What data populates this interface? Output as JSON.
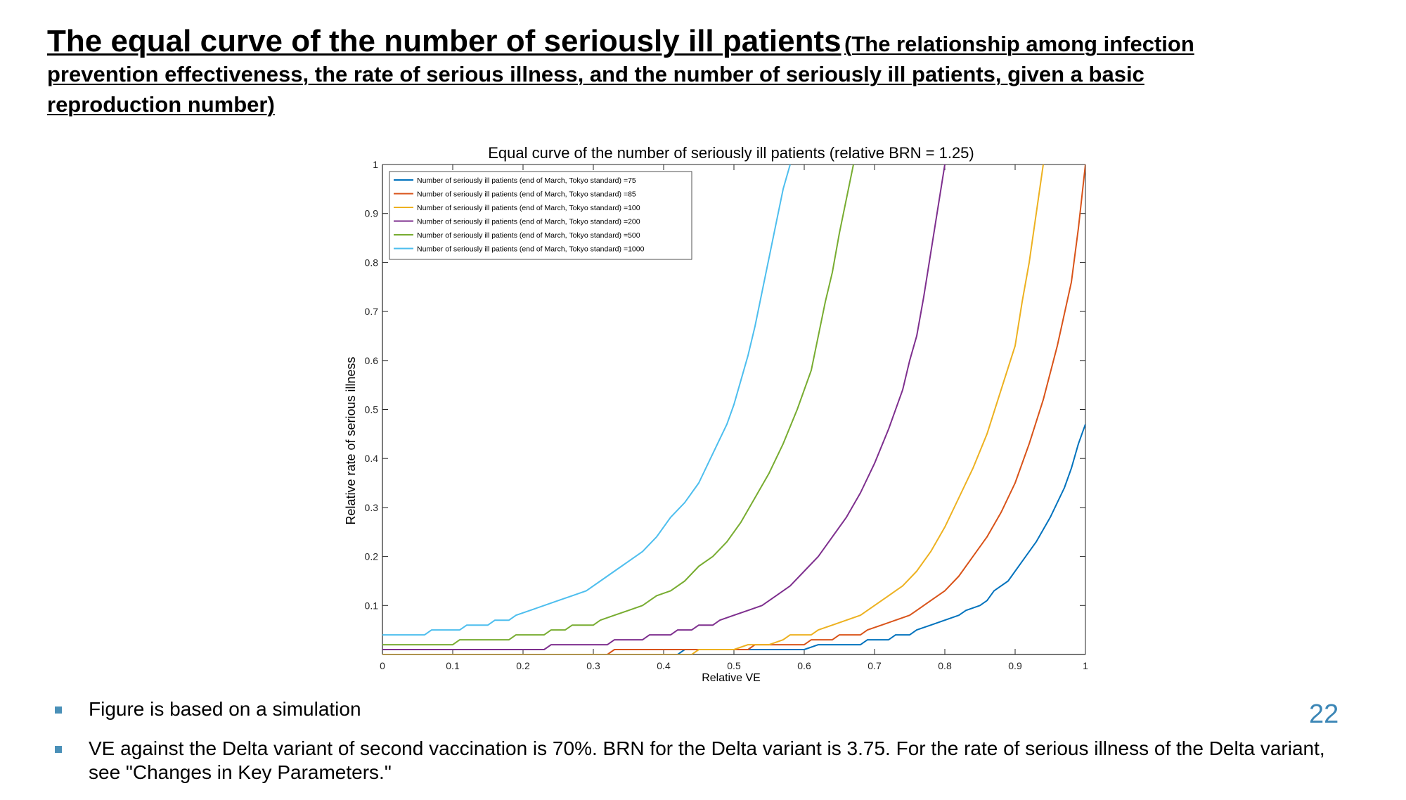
{
  "slide": {
    "title_main": "The equal curve of the number of seriously ill patients",
    "title_sub": "(The relationship among infection prevention effectiveness, the rate of serious illness, and the number of seriously ill patients, given a basic reproduction number)",
    "bullets": [
      "Figure is based on a simulation",
      "VE against the Delta variant of second vaccination is 70%. BRN for the Delta variant is 3.75. For the rate of serious illness of the Delta variant, see \"Changes in Key Parameters.\""
    ],
    "page_number": "22",
    "bullet_color": "#4a90b8",
    "page_number_color": "#3b86b6"
  },
  "chart_data": {
    "type": "line",
    "title": "Equal curve of the number of seriously ill patients (relative BRN = 1.25)",
    "xlabel": "Relative VE",
    "ylabel": "Relative rate of serious illness",
    "xlim": [
      0,
      1
    ],
    "ylim": [
      0,
      1
    ],
    "xticks": [
      "0",
      "0.1",
      "0.2",
      "0.3",
      "0.4",
      "0.5",
      "0.6",
      "0.7",
      "0.8",
      "0.9",
      "1"
    ],
    "yticks": [
      "0.1",
      "0.2",
      "0.3",
      "0.4",
      "0.5",
      "0.6",
      "0.7",
      "0.8",
      "0.9",
      "1"
    ],
    "grid": false,
    "legend_position": "top-left",
    "series": [
      {
        "name": "Number of seriously ill patients (end of March, Tokyo standard) =75",
        "color": "#0072BD",
        "points": [
          [
            0.32,
            0
          ],
          [
            0.42,
            0
          ],
          [
            0.43,
            0.01
          ],
          [
            0.6,
            0.01
          ],
          [
            0.62,
            0.02
          ],
          [
            0.68,
            0.02
          ],
          [
            0.69,
            0.03
          ],
          [
            0.72,
            0.03
          ],
          [
            0.73,
            0.04
          ],
          [
            0.75,
            0.04
          ],
          [
            0.76,
            0.05
          ],
          [
            0.78,
            0.06
          ],
          [
            0.8,
            0.07
          ],
          [
            0.82,
            0.08
          ],
          [
            0.83,
            0.09
          ],
          [
            0.85,
            0.1
          ],
          [
            0.86,
            0.11
          ],
          [
            0.87,
            0.13
          ],
          [
            0.89,
            0.15
          ],
          [
            0.91,
            0.19
          ],
          [
            0.93,
            0.23
          ],
          [
            0.95,
            0.28
          ],
          [
            0.97,
            0.34
          ],
          [
            0.98,
            0.38
          ],
          [
            0.99,
            0.43
          ],
          [
            1.0,
            0.47
          ]
        ]
      },
      {
        "name": "Number of seriously ill patients (end of March, Tokyo standard) =85",
        "color": "#D95319",
        "points": [
          [
            0.22,
            0
          ],
          [
            0.32,
            0
          ],
          [
            0.33,
            0.01
          ],
          [
            0.52,
            0.01
          ],
          [
            0.53,
            0.02
          ],
          [
            0.6,
            0.02
          ],
          [
            0.61,
            0.03
          ],
          [
            0.64,
            0.03
          ],
          [
            0.65,
            0.04
          ],
          [
            0.68,
            0.04
          ],
          [
            0.69,
            0.05
          ],
          [
            0.71,
            0.06
          ],
          [
            0.73,
            0.07
          ],
          [
            0.75,
            0.08
          ],
          [
            0.76,
            0.09
          ],
          [
            0.78,
            0.11
          ],
          [
            0.8,
            0.13
          ],
          [
            0.82,
            0.16
          ],
          [
            0.84,
            0.2
          ],
          [
            0.86,
            0.24
          ],
          [
            0.88,
            0.29
          ],
          [
            0.9,
            0.35
          ],
          [
            0.92,
            0.43
          ],
          [
            0.94,
            0.52
          ],
          [
            0.96,
            0.63
          ],
          [
            0.98,
            0.76
          ],
          [
            0.99,
            0.87
          ],
          [
            1.0,
            1.0
          ]
        ]
      },
      {
        "name": "Number of seriously ill patients (end of March, Tokyo standard) =100",
        "color": "#EDB120",
        "points": [
          [
            0,
            0
          ],
          [
            0.44,
            0
          ],
          [
            0.45,
            0.01
          ],
          [
            0.5,
            0.01
          ],
          [
            0.52,
            0.02
          ],
          [
            0.55,
            0.02
          ],
          [
            0.57,
            0.03
          ],
          [
            0.58,
            0.04
          ],
          [
            0.61,
            0.04
          ],
          [
            0.62,
            0.05
          ],
          [
            0.64,
            0.06
          ],
          [
            0.66,
            0.07
          ],
          [
            0.68,
            0.08
          ],
          [
            0.7,
            0.1
          ],
          [
            0.72,
            0.12
          ],
          [
            0.74,
            0.14
          ],
          [
            0.76,
            0.17
          ],
          [
            0.78,
            0.21
          ],
          [
            0.8,
            0.26
          ],
          [
            0.82,
            0.32
          ],
          [
            0.84,
            0.38
          ],
          [
            0.86,
            0.45
          ],
          [
            0.88,
            0.54
          ],
          [
            0.9,
            0.63
          ],
          [
            0.91,
            0.72
          ],
          [
            0.92,
            0.8
          ],
          [
            0.93,
            0.9
          ],
          [
            0.94,
            1.0
          ]
        ]
      },
      {
        "name": "Number of seriously ill patients (end of March, Tokyo standard) =200",
        "color": "#7E2F8E",
        "points": [
          [
            0,
            0.01
          ],
          [
            0.23,
            0.01
          ],
          [
            0.24,
            0.02
          ],
          [
            0.32,
            0.02
          ],
          [
            0.33,
            0.03
          ],
          [
            0.37,
            0.03
          ],
          [
            0.38,
            0.04
          ],
          [
            0.41,
            0.04
          ],
          [
            0.42,
            0.05
          ],
          [
            0.44,
            0.05
          ],
          [
            0.45,
            0.06
          ],
          [
            0.47,
            0.06
          ],
          [
            0.48,
            0.07
          ],
          [
            0.5,
            0.08
          ],
          [
            0.52,
            0.09
          ],
          [
            0.54,
            0.1
          ],
          [
            0.56,
            0.12
          ],
          [
            0.58,
            0.14
          ],
          [
            0.6,
            0.17
          ],
          [
            0.62,
            0.2
          ],
          [
            0.64,
            0.24
          ],
          [
            0.66,
            0.28
          ],
          [
            0.68,
            0.33
          ],
          [
            0.7,
            0.39
          ],
          [
            0.72,
            0.46
          ],
          [
            0.74,
            0.54
          ],
          [
            0.75,
            0.6
          ],
          [
            0.76,
            0.65
          ],
          [
            0.77,
            0.73
          ],
          [
            0.78,
            0.82
          ],
          [
            0.79,
            0.91
          ],
          [
            0.8,
            1.0
          ]
        ]
      },
      {
        "name": "Number of seriously ill patients (end of March, Tokyo standard) =500",
        "color": "#77AC30",
        "points": [
          [
            0,
            0.02
          ],
          [
            0.1,
            0.02
          ],
          [
            0.11,
            0.03
          ],
          [
            0.18,
            0.03
          ],
          [
            0.19,
            0.04
          ],
          [
            0.23,
            0.04
          ],
          [
            0.24,
            0.05
          ],
          [
            0.26,
            0.05
          ],
          [
            0.27,
            0.06
          ],
          [
            0.3,
            0.06
          ],
          [
            0.31,
            0.07
          ],
          [
            0.33,
            0.08
          ],
          [
            0.35,
            0.09
          ],
          [
            0.37,
            0.1
          ],
          [
            0.39,
            0.12
          ],
          [
            0.41,
            0.13
          ],
          [
            0.43,
            0.15
          ],
          [
            0.45,
            0.18
          ],
          [
            0.47,
            0.2
          ],
          [
            0.49,
            0.23
          ],
          [
            0.51,
            0.27
          ],
          [
            0.53,
            0.32
          ],
          [
            0.55,
            0.37
          ],
          [
            0.57,
            0.43
          ],
          [
            0.59,
            0.5
          ],
          [
            0.61,
            0.58
          ],
          [
            0.62,
            0.65
          ],
          [
            0.63,
            0.72
          ],
          [
            0.64,
            0.78
          ],
          [
            0.65,
            0.86
          ],
          [
            0.66,
            0.93
          ],
          [
            0.67,
            1.0
          ]
        ]
      },
      {
        "name": "Number of seriously ill patients (end of March, Tokyo standard) =1000",
        "color": "#4DBEEE",
        "points": [
          [
            0,
            0.04
          ],
          [
            0.06,
            0.04
          ],
          [
            0.07,
            0.05
          ],
          [
            0.11,
            0.05
          ],
          [
            0.12,
            0.06
          ],
          [
            0.15,
            0.06
          ],
          [
            0.16,
            0.07
          ],
          [
            0.18,
            0.07
          ],
          [
            0.19,
            0.08
          ],
          [
            0.21,
            0.09
          ],
          [
            0.23,
            0.1
          ],
          [
            0.25,
            0.11
          ],
          [
            0.27,
            0.12
          ],
          [
            0.29,
            0.13
          ],
          [
            0.31,
            0.15
          ],
          [
            0.33,
            0.17
          ],
          [
            0.35,
            0.19
          ],
          [
            0.37,
            0.21
          ],
          [
            0.39,
            0.24
          ],
          [
            0.41,
            0.28
          ],
          [
            0.43,
            0.31
          ],
          [
            0.45,
            0.35
          ],
          [
            0.47,
            0.41
          ],
          [
            0.49,
            0.47
          ],
          [
            0.5,
            0.51
          ],
          [
            0.51,
            0.56
          ],
          [
            0.52,
            0.61
          ],
          [
            0.53,
            0.67
          ],
          [
            0.54,
            0.74
          ],
          [
            0.55,
            0.81
          ],
          [
            0.56,
            0.88
          ],
          [
            0.57,
            0.95
          ],
          [
            0.58,
            1.0
          ]
        ]
      }
    ]
  }
}
